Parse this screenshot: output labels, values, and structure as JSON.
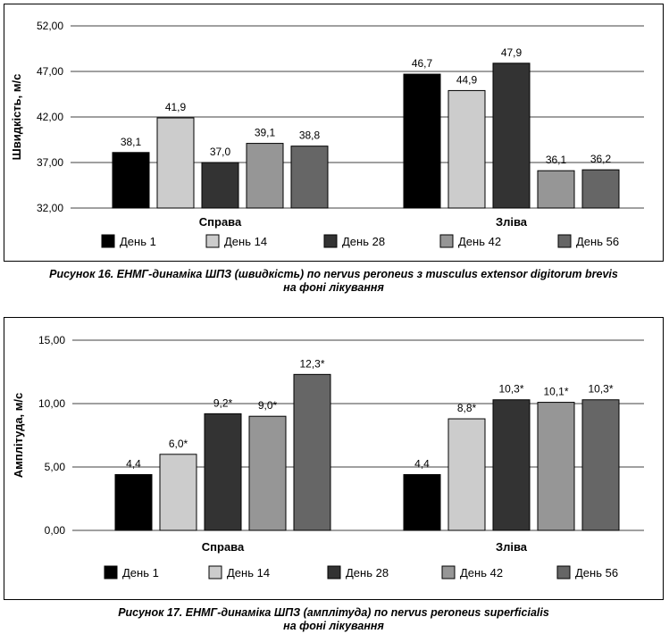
{
  "charts": [
    {
      "caption_line1": "Рисунок 16. ЕНМГ-динаміка ШПЗ (швидкість) по nervus peroneus з musculus extensor digitorum brevis",
      "caption_line2": "на фоні лікування",
      "tick_labels": [
        "32,00",
        "37,00",
        "42,00",
        "47,00",
        "52,00"
      ]
    },
    {
      "caption_line1": "Рисунок 17. ЕНМГ-динаміка ШПЗ (амплітуда) по nervus peroneus superficialis",
      "caption_line2": "на фоні лікування",
      "tick_labels": [
        "0,00",
        "5,00",
        "10,00",
        "15,00"
      ]
    }
  ],
  "chart_data": [
    {
      "type": "bar",
      "ylabel": "Швидкість, м/с",
      "ylim": [
        32,
        52
      ],
      "yticks": [
        32,
        37,
        42,
        47,
        52
      ],
      "grid": true,
      "legend_position": "bottom",
      "categories": [
        "Справа",
        "Зліва"
      ],
      "series": [
        {
          "name": "День 1",
          "color": "#000000",
          "values": [
            38.1,
            46.7
          ],
          "labels": [
            "38,1",
            "46,7"
          ]
        },
        {
          "name": "День 14",
          "color": "#cccccc",
          "values": [
            41.9,
            44.9
          ],
          "labels": [
            "41,9",
            "44,9"
          ]
        },
        {
          "name": "День 28",
          "color": "#333333",
          "values": [
            37.0,
            47.9
          ],
          "labels": [
            "37,0",
            "47,9"
          ]
        },
        {
          "name": "День 42",
          "color": "#969696",
          "values": [
            39.1,
            36.1
          ],
          "labels": [
            "39,1",
            "36,1"
          ]
        },
        {
          "name": "День 56",
          "color": "#666666",
          "values": [
            38.8,
            36.2
          ],
          "labels": [
            "38,8",
            "36,2"
          ]
        }
      ]
    },
    {
      "type": "bar",
      "ylabel": "Амплітуда, м/с",
      "ylim": [
        0,
        15
      ],
      "yticks": [
        0,
        5,
        10,
        15
      ],
      "grid": true,
      "legend_position": "bottom",
      "categories": [
        "Справа",
        "Зліва"
      ],
      "series": [
        {
          "name": "День 1",
          "color": "#000000",
          "values": [
            4.4,
            4.4
          ],
          "labels": [
            "4,4",
            "4,4"
          ]
        },
        {
          "name": "День 14",
          "color": "#cccccc",
          "values": [
            6.0,
            8.8
          ],
          "labels": [
            "6,0*",
            "8,8*"
          ]
        },
        {
          "name": "День 28",
          "color": "#333333",
          "values": [
            9.2,
            10.3
          ],
          "labels": [
            "9,2*",
            "10,3*"
          ]
        },
        {
          "name": "День 42",
          "color": "#969696",
          "values": [
            9.0,
            10.1
          ],
          "labels": [
            "9,0*",
            "10,1*"
          ]
        },
        {
          "name": "День 56",
          "color": "#666666",
          "values": [
            12.3,
            10.3
          ],
          "labels": [
            "12,3*",
            "10,3*"
          ]
        }
      ]
    }
  ]
}
